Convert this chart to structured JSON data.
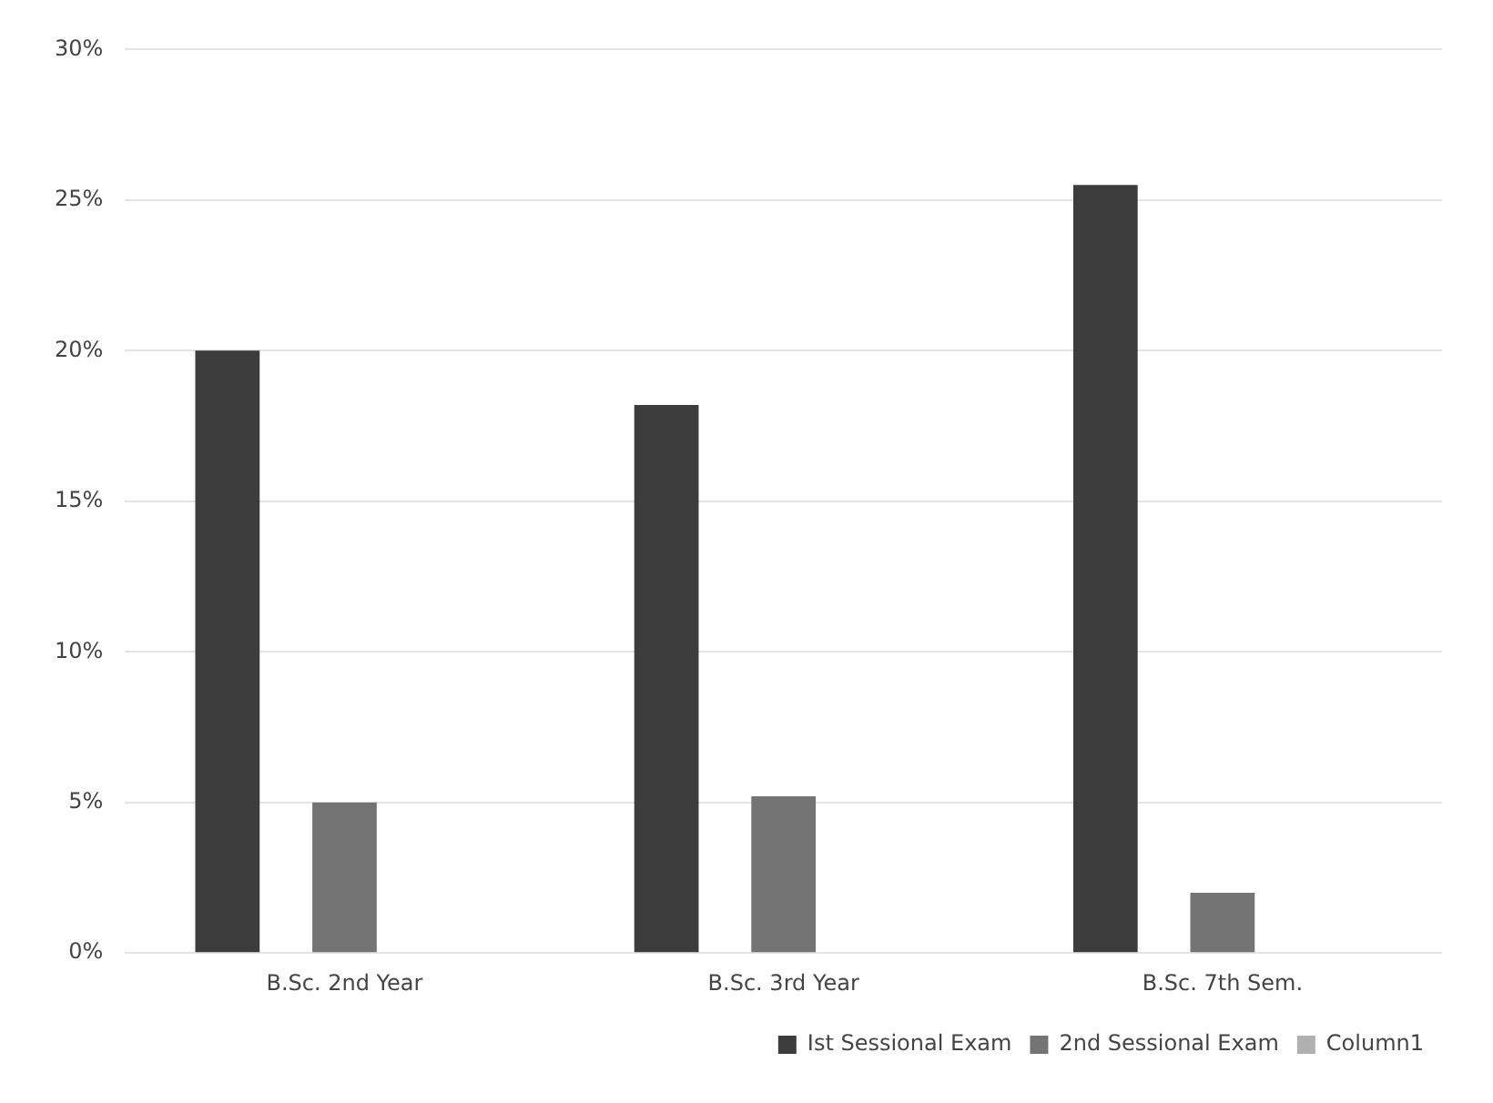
{
  "chart_data": {
    "type": "bar",
    "categories": [
      "B.Sc. 2nd Year",
      "B.Sc. 3rd Year",
      "B.Sc. 7th Sem."
    ],
    "series": [
      {
        "name": "Ist Sessional Exam",
        "color": "#3c3c3c",
        "values": [
          20,
          18.2,
          25.5
        ]
      },
      {
        "name": "2nd Sessional Exam",
        "color": "#747474",
        "values": [
          5,
          5.2,
          2.0
        ]
      },
      {
        "name": "Column1",
        "color": "#b0b0b0",
        "values": [
          null,
          null,
          null
        ]
      }
    ],
    "ylim": [
      0,
      30
    ],
    "yticks": [
      {
        "value": 0,
        "label": "0%"
      },
      {
        "value": 5,
        "label": "5%"
      },
      {
        "value": 10,
        "label": "10%"
      },
      {
        "value": 15,
        "label": "15%"
      },
      {
        "value": 20,
        "label": "20%"
      },
      {
        "value": 25,
        "label": "25%"
      },
      {
        "value": 30,
        "label": "30%"
      }
    ],
    "grid": "y",
    "legend": "bottom"
  }
}
